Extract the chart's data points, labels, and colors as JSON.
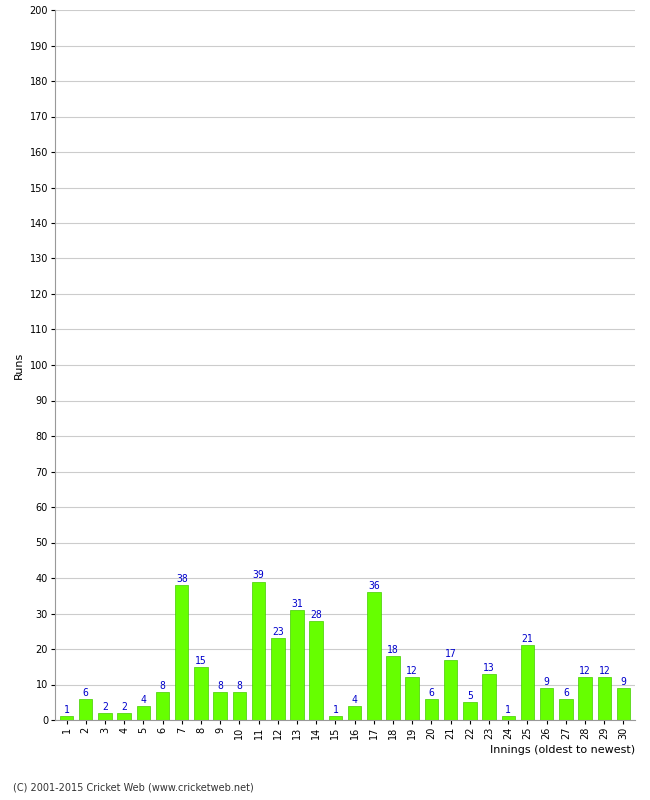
{
  "title": "",
  "xlabel": "Innings (oldest to newest)",
  "ylabel": "Runs",
  "values": [
    1,
    6,
    2,
    2,
    4,
    8,
    38,
    15,
    8,
    8,
    39,
    23,
    31,
    28,
    1,
    4,
    36,
    18,
    12,
    6,
    17,
    5,
    13,
    1,
    21,
    9,
    6,
    12,
    12,
    9
  ],
  "categories": [
    1,
    2,
    3,
    4,
    5,
    6,
    7,
    8,
    9,
    10,
    11,
    12,
    13,
    14,
    15,
    16,
    17,
    18,
    19,
    20,
    21,
    22,
    23,
    24,
    25,
    26,
    27,
    28,
    29,
    30
  ],
  "bar_color": "#66ff00",
  "bar_edge_color": "#44cc00",
  "label_color": "#0000cc",
  "background_color": "#ffffff",
  "grid_color": "#cccccc",
  "ylim": [
    0,
    200
  ],
  "yticks": [
    0,
    10,
    20,
    30,
    40,
    50,
    60,
    70,
    80,
    90,
    100,
    110,
    120,
    130,
    140,
    150,
    160,
    170,
    180,
    190,
    200
  ],
  "axis_label_fontsize": 8,
  "tick_fontsize": 7,
  "value_label_fontsize": 7,
  "footer": "(C) 2001-2015 Cricket Web (www.cricketweb.net)"
}
